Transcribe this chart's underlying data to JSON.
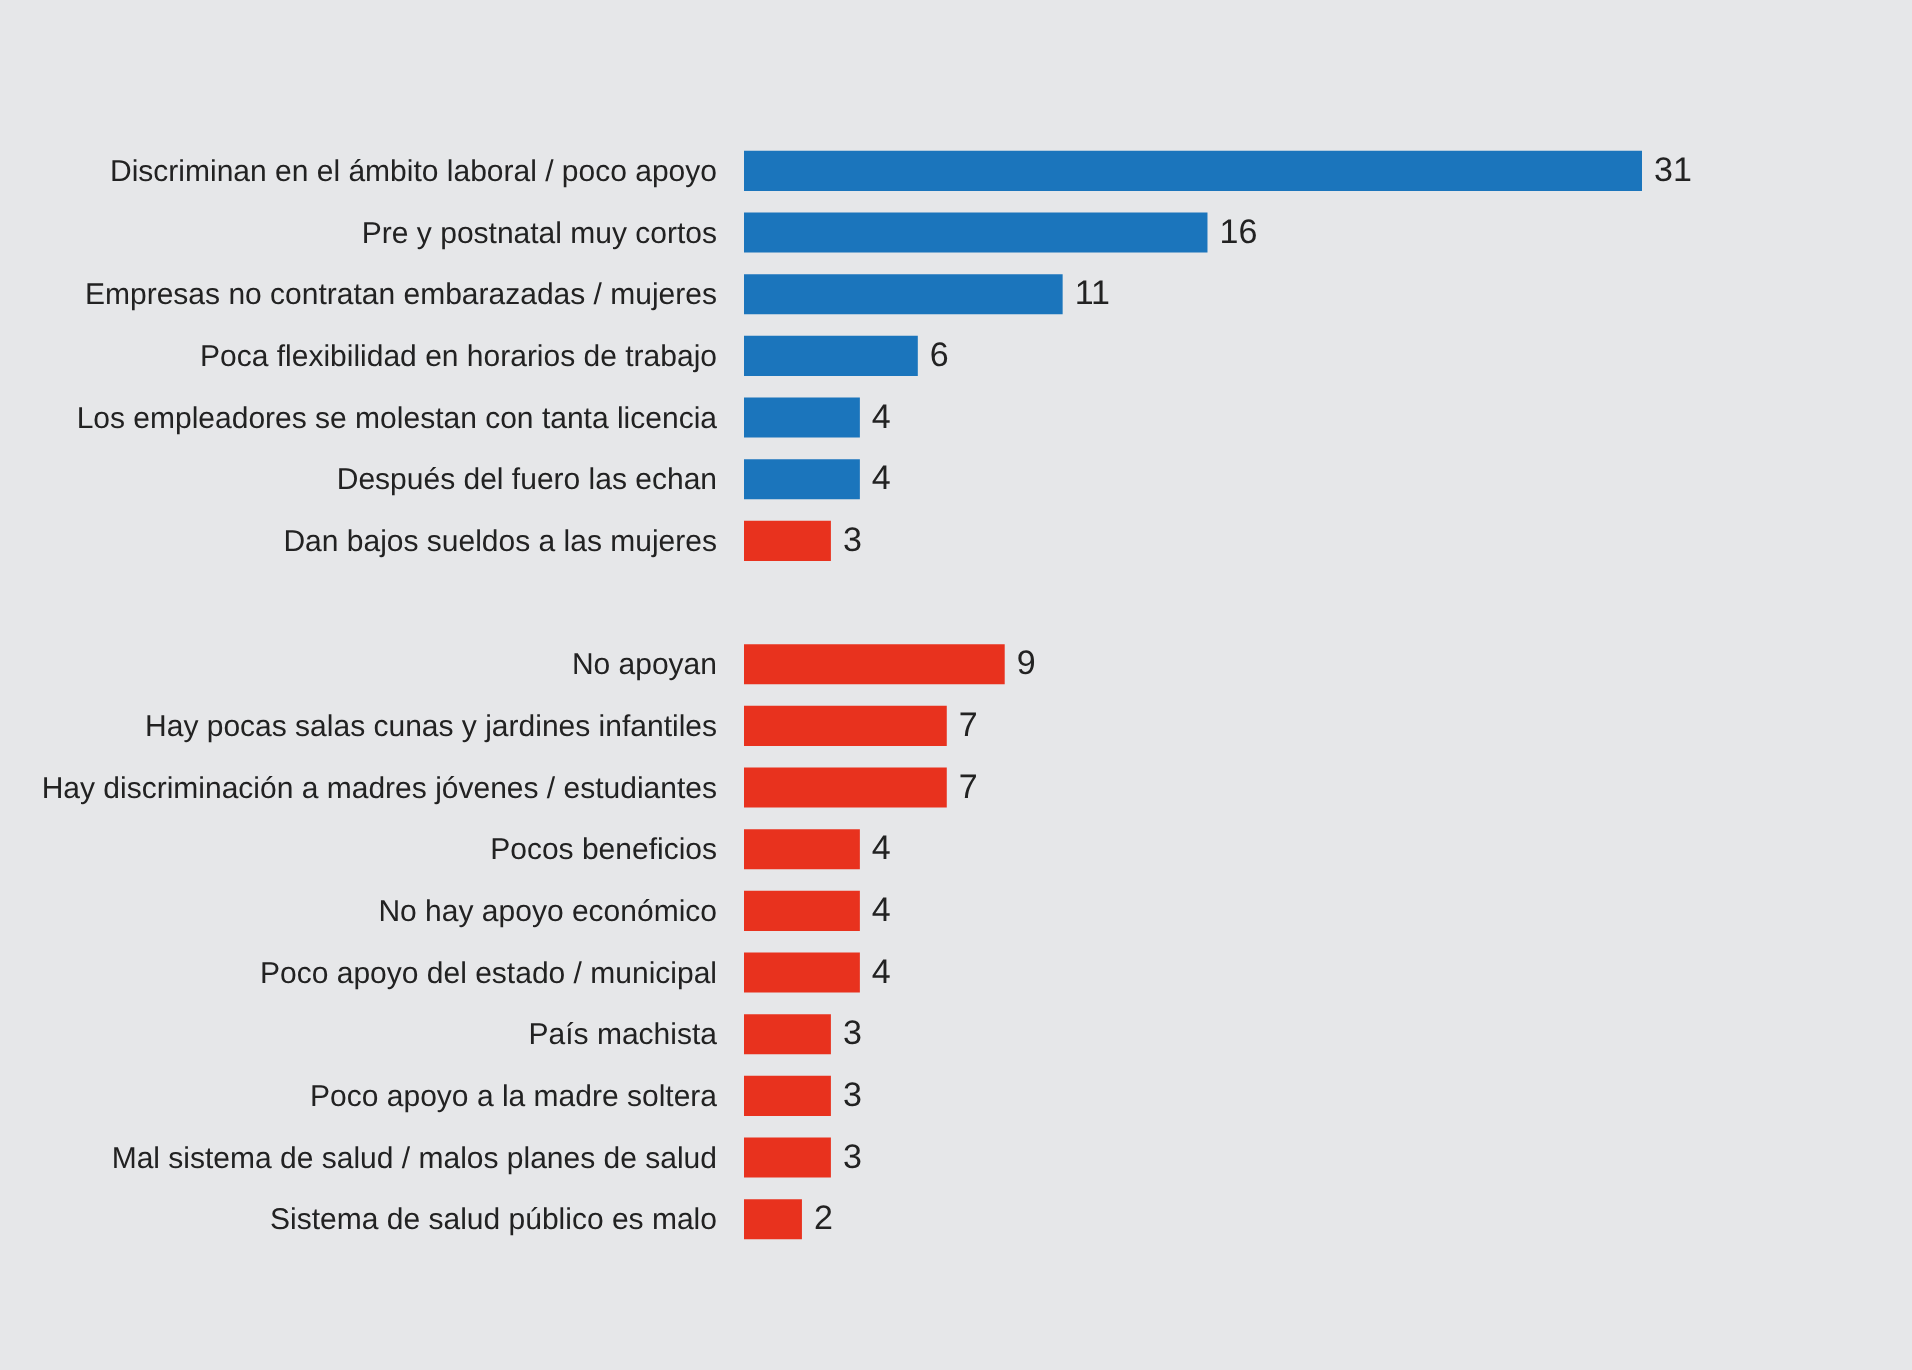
{
  "chart_data": {
    "type": "bar",
    "orientation": "horizontal",
    "data_labels": true,
    "grid": false,
    "categories": [
      "Discriminan en el ámbito laboral / poco apoyo",
      "Pre y postnatal muy cortos",
      "Empresas no contratan embarazadas / mujeres",
      "Poca flexibilidad en horarios de trabajo",
      "Los empleadores se molestan con tanta licencia",
      "Después del fuero las echan",
      "Dan bajos sueldos a las mujeres",
      null,
      "No apoyan",
      "Hay pocas salas cunas y jardines infantiles",
      "Hay discriminación a madres jóvenes / estudiantes",
      "Pocos beneficios",
      "No hay apoyo económico",
      "Poco apoyo del estado / municipal",
      "País machista",
      "Poco apoyo a la madre soltera",
      "Mal sistema de salud / malos planes de salud",
      "Sistema de salud  público es malo"
    ],
    "values": [
      31,
      16,
      11,
      6,
      4,
      4,
      3,
      null,
      9,
      7,
      7,
      4,
      4,
      4,
      3,
      3,
      3,
      2
    ],
    "colors": [
      "#1b75bc",
      "#1b75bc",
      "#1b75bc",
      "#1b75bc",
      "#1b75bc",
      "#1b75bc",
      "#e8321e",
      "#e8321e",
      "#e8321e",
      "#e8321e",
      "#e8321e",
      "#e8321e",
      "#e8321e",
      "#e8321e",
      "#e8321e",
      "#e8321e",
      "#e8321e",
      "#e8321e"
    ]
  }
}
